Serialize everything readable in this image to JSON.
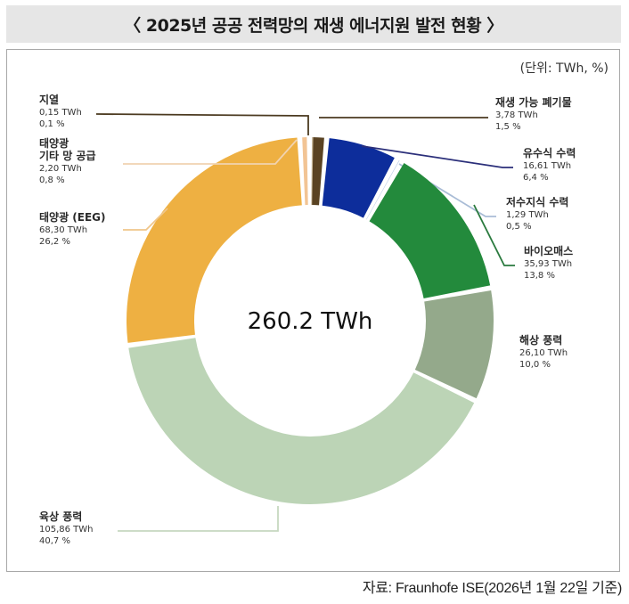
{
  "title": "〈 2025년 공공 전력망의 재생 에너지원 발전 현황 〉",
  "unit": "(단위: TWh, %)",
  "source": "자료: Fraunhofe ISE(2026년 1월 22일 기준)",
  "chart_data": {
    "type": "pie",
    "donut": true,
    "center_label": "260.2 TWh",
    "slices": [
      {
        "name": "재생 가능 폐기물",
        "value_label": "3,78 TWh",
        "pct_label": "1,5 %",
        "value": 3.78,
        "pct": 1.5,
        "color": "#5a4323"
      },
      {
        "name": "유수식 수력",
        "value_label": "16,61 TWh",
        "pct_label": "6,4 %",
        "value": 16.61,
        "pct": 6.4,
        "color": "#0d2d9b"
      },
      {
        "name": "저수지식 수력",
        "value_label": "1,29 TWh",
        "pct_label": "0,5 %",
        "value": 1.29,
        "pct": 0.5,
        "color": "#b9cbe6"
      },
      {
        "name": "바이오매스",
        "value_label": "35,93 TWh",
        "pct_label": "13,8 %",
        "value": 35.93,
        "pct": 13.8,
        "color": "#238a3c"
      },
      {
        "name": "해상 풍력",
        "value_label": "26,10 TWh",
        "pct_label": "10,0 %",
        "value": 26.1,
        "pct": 10.0,
        "color": "#94a98b"
      },
      {
        "name": "육상 풍력",
        "value_label": "105,86 TWh",
        "pct_label": "40,7 %",
        "value": 105.86,
        "pct": 40.7,
        "color": "#bcd4b6"
      },
      {
        "name": "태양광 (EEG)",
        "value_label": "68,30 TWh",
        "pct_label": "26,2 %",
        "value": 68.3,
        "pct": 26.2,
        "color": "#eeb042"
      },
      {
        "name": "태양광\n기타 망 공급",
        "value_label": "2,20 TWh",
        "pct_label": "0,8 %",
        "value": 2.2,
        "pct": 0.8,
        "color": "#f2c494"
      },
      {
        "name": "지열",
        "value_label": "0,15 TWh",
        "pct_label": "0,1 %",
        "value": 0.15,
        "pct": 0.1,
        "color": "#c8b89a"
      }
    ]
  }
}
